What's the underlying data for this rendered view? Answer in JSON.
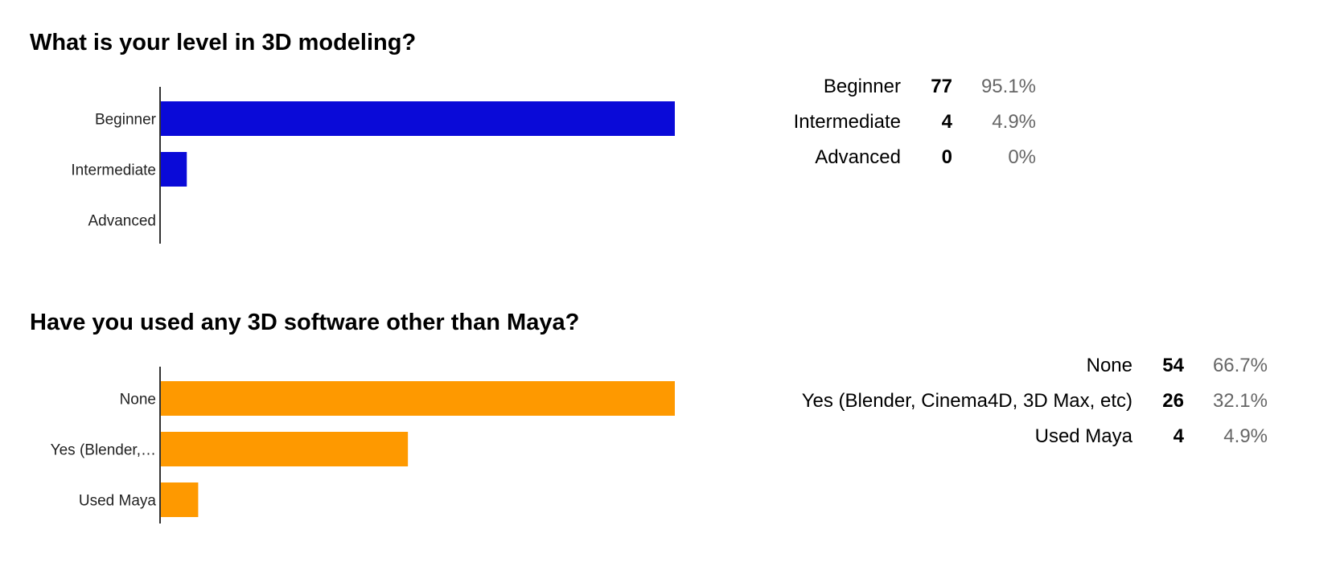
{
  "questions": [
    {
      "title": "What is your level in 3D modeling?",
      "bar_color": "#0a0ad8",
      "rows": [
        {
          "axis_label": "Beginner",
          "label": "Beginner",
          "count": "77",
          "percent": "95.1%"
        },
        {
          "axis_label": "Intermediate",
          "label": "Intermediate",
          "count": "4",
          "percent": "4.9%"
        },
        {
          "axis_label": "Advanced",
          "label": "Advanced",
          "count": "0",
          "percent": "0%"
        }
      ]
    },
    {
      "title": "Have you used any 3D software other than Maya?",
      "bar_color": "#fe9900",
      "rows": [
        {
          "axis_label": "None",
          "label": "None",
          "count": "54",
          "percent": "66.7%"
        },
        {
          "axis_label": "Yes (Blender,…",
          "label": "Yes (Blender, Cinema4D, 3D Max, etc)",
          "count": "26",
          "percent": "32.1%"
        },
        {
          "axis_label": "Used Maya",
          "label": "Used Maya",
          "count": "4",
          "percent": "4.9%"
        }
      ]
    }
  ],
  "chart_data": [
    {
      "type": "bar",
      "orientation": "horizontal",
      "title": "What is your level in 3D modeling?",
      "categories": [
        "Beginner",
        "Intermediate",
        "Advanced"
      ],
      "values": [
        77,
        4,
        0
      ],
      "percentages": [
        "95.1%",
        "4.9%",
        "0%"
      ],
      "color": "#0a0ad8",
      "xlim": [
        0,
        77
      ],
      "grid": false,
      "legend": "none"
    },
    {
      "type": "bar",
      "orientation": "horizontal",
      "title": "Have you used any 3D software other than Maya?",
      "categories": [
        "None",
        "Yes (Blender, Cinema4D, 3D Max, etc)",
        "Used Maya"
      ],
      "values": [
        54,
        26,
        4
      ],
      "percentages": [
        "66.7%",
        "32.1%",
        "4.9%"
      ],
      "color": "#fe9900",
      "xlim": [
        0,
        54
      ],
      "grid": false,
      "legend": "none"
    }
  ]
}
